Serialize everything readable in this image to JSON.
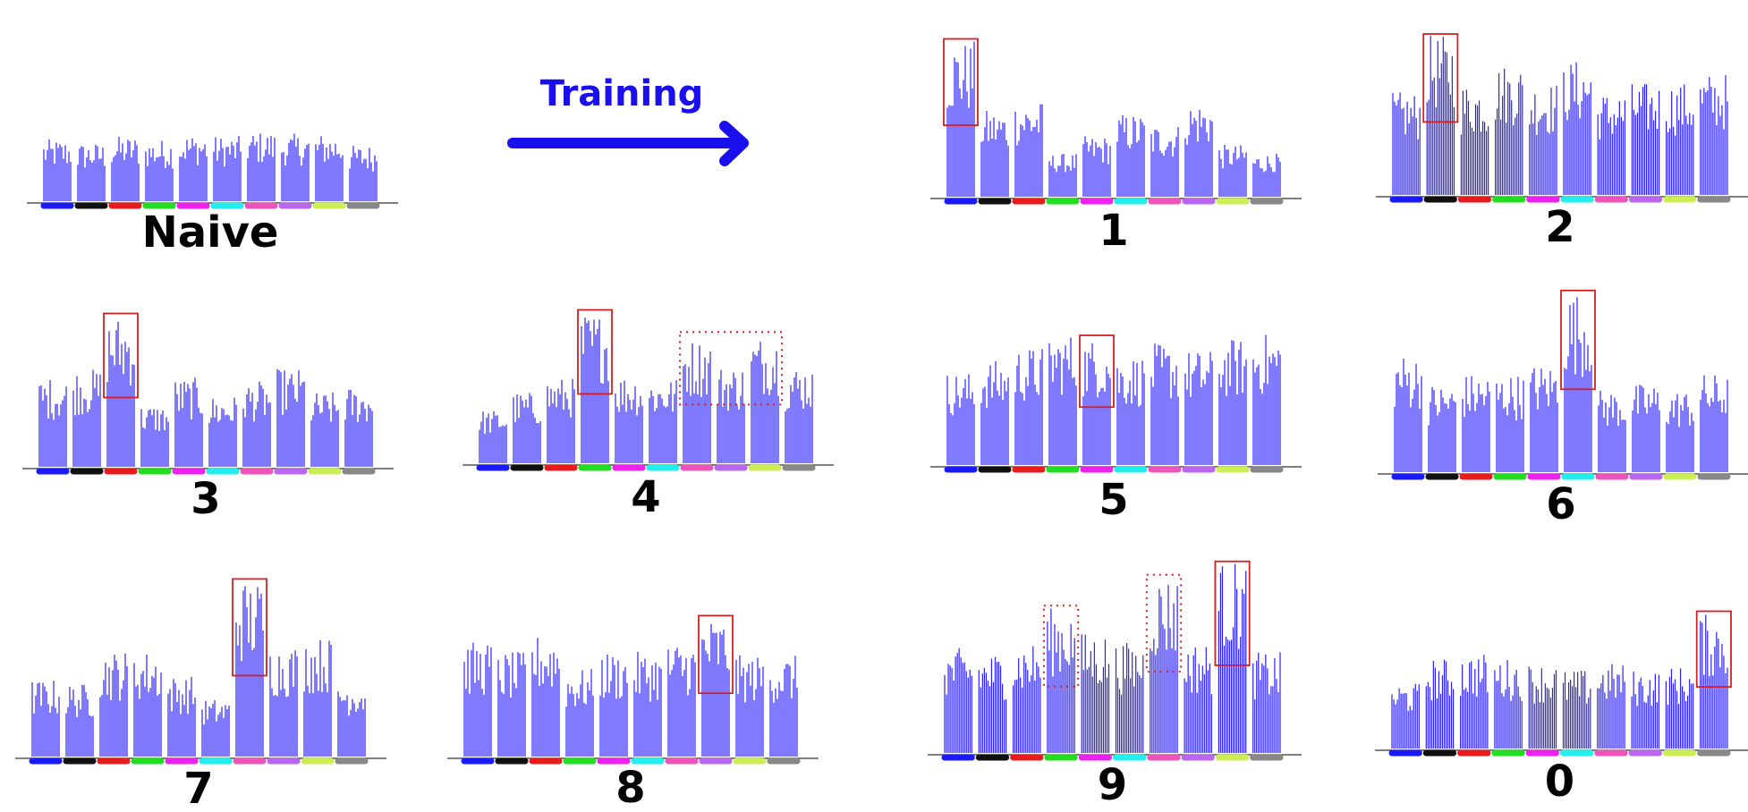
{
  "training": {
    "label": "Training",
    "color": "#1a10ee"
  },
  "colors": {
    "bars": "#2a20ff",
    "box": "#d42020",
    "axis": "#555555",
    "category_colors": [
      "#1a1aff",
      "#111111",
      "#e81c1c",
      "#22dd22",
      "#ee22ee",
      "#22eeee",
      "#ee55bb",
      "#bb66ee",
      "#ccee55",
      "#888888"
    ]
  },
  "chart_data": [
    {
      "type": "bar",
      "label": "Naive",
      "group_levels": [
        0.55,
        0.52,
        0.58,
        0.55,
        0.6,
        0.58,
        0.62,
        0.6,
        0.6,
        0.5
      ],
      "highlight_solid": [],
      "highlight_dotted": []
    },
    {
      "type": "bar",
      "label": "1",
      "group_levels": [
        0.9,
        0.5,
        0.55,
        0.25,
        0.35,
        0.48,
        0.42,
        0.55,
        0.3,
        0.25
      ],
      "highlight_solid": [
        0
      ],
      "highlight_dotted": []
    },
    {
      "type": "bar",
      "label": "2",
      "group_levels": [
        0.55,
        0.85,
        0.6,
        0.7,
        0.6,
        0.72,
        0.55,
        0.6,
        0.6,
        0.65
      ],
      "highlight_solid": [
        1
      ],
      "highlight_dotted": []
    },
    {
      "type": "bar",
      "label": "3",
      "group_levels": [
        0.5,
        0.55,
        0.85,
        0.35,
        0.5,
        0.4,
        0.48,
        0.55,
        0.42,
        0.45
      ],
      "highlight_solid": [
        2
      ],
      "highlight_dotted": []
    },
    {
      "type": "bar",
      "label": "4",
      "group_levels": [
        0.3,
        0.4,
        0.48,
        0.85,
        0.5,
        0.48,
        0.7,
        0.55,
        0.72,
        0.55
      ],
      "highlight_solid": [
        3
      ],
      "highlight_dotted": [
        6,
        7,
        8
      ]
    },
    {
      "type": "bar",
      "label": "5",
      "group_levels": [
        0.55,
        0.62,
        0.7,
        0.78,
        0.75,
        0.65,
        0.72,
        0.68,
        0.75,
        0.78
      ],
      "highlight_solid": [
        4
      ],
      "highlight_dotted": []
    },
    {
      "type": "bar",
      "label": "6",
      "group_levels": [
        0.6,
        0.45,
        0.5,
        0.5,
        0.55,
        0.92,
        0.42,
        0.45,
        0.42,
        0.5
      ],
      "highlight_solid": [
        5
      ],
      "highlight_dotted": []
    },
    {
      "type": "bar",
      "label": "7",
      "group_levels": [
        0.4,
        0.38,
        0.55,
        0.55,
        0.42,
        0.3,
        0.92,
        0.58,
        0.62,
        0.4
      ],
      "highlight_solid": [
        6
      ],
      "highlight_dotted": []
    },
    {
      "type": "bar",
      "label": "8",
      "group_levels": [
        0.68,
        0.62,
        0.72,
        0.52,
        0.62,
        0.62,
        0.68,
        0.82,
        0.6,
        0.6
      ],
      "highlight_solid": [
        7
      ],
      "highlight_dotted": []
    },
    {
      "type": "bar",
      "label": "9",
      "group_levels": [
        0.52,
        0.5,
        0.55,
        0.72,
        0.6,
        0.55,
        0.88,
        0.55,
        0.95,
        0.5
      ],
      "highlight_solid": [
        8
      ],
      "highlight_dotted": [
        3,
        6
      ]
    },
    {
      "type": "bar",
      "label": "0",
      "group_levels": [
        0.4,
        0.55,
        0.58,
        0.55,
        0.52,
        0.48,
        0.52,
        0.48,
        0.5,
        0.82
      ],
      "highlight_solid": [
        9
      ],
      "highlight_dotted": []
    }
  ]
}
